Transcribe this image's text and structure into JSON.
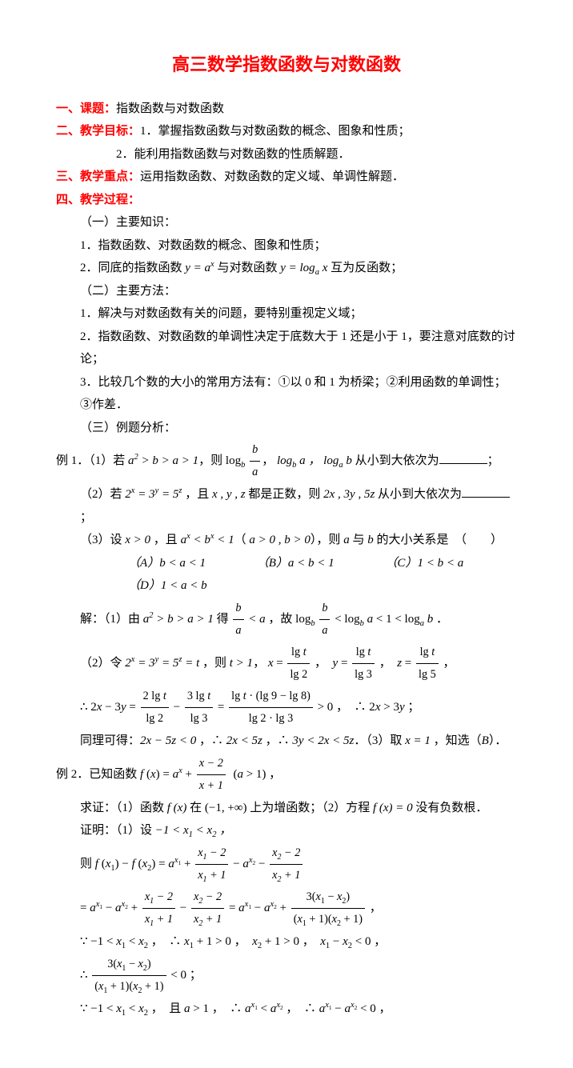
{
  "title": "高三数学指数函数与对数函数",
  "s1": {
    "label": "一、课题：",
    "text": "指数函数与对数函数"
  },
  "s2": {
    "label": "二、教学目标：",
    "item1": "1．掌握指数函数与对数函数的概念、图象和性质；",
    "item2": "2．能利用指数函数与对数函数的性质解题．"
  },
  "s3": {
    "label": "三、教学重点：",
    "text": "运用指数函数、对数函数的定义域、单调性解题．"
  },
  "s4": {
    "label": "四、教学过程：",
    "p1": {
      "h": "（一）主要知识：",
      "l1": "1．指数函数、对数函数的概念、图象和性质；",
      "l2a": "2．同底的指数函数 ",
      "l2b": " 与对数函数 ",
      "l2c": " 互为反函数；"
    },
    "p2": {
      "h": "（二）主要方法：",
      "l1": "1．解决与对数函数有关的问题，要特别重视定义域；",
      "l2": "2．指数函数、对数函数的单调性决定于底数大于 1 还是小于 1，要注意对底数的讨论；",
      "l3": "3．比较几个数的大小的常用方法有：①以 0 和 1 为桥梁；②利用函数的单调性；③作差．"
    },
    "p3h": "（三）例题分析："
  },
  "ex1": {
    "label": "例 1．",
    "q1a": "（1）若 ",
    "q1b": "，则 ",
    "q1c": "， ",
    "q1d": " 从小到大依次为",
    "q2a": "（2）若 ",
    "q2b": " ，且 ",
    "q2c": " 都是正数，则 ",
    "q2d": " 从小到大依次为",
    "q3a": "（3）设 ",
    "q3b": " ，且 ",
    "q3c": "（ ",
    "q3d": "），则 ",
    "q3e": " 与 ",
    "q3f": " 的大小关系是　（　　）",
    "choices": {
      "A": "b < a < 1",
      "B": "a < b < 1",
      "C": "1 < b < a",
      "D": "1 < a < b"
    },
    "sol1a": "解：（1）由 ",
    "sol1b": " 得 ",
    "sol1c": " ，故 ",
    "sol2a": "（2）令 ",
    "sol2b": " ，则 ",
    "sol2c": "， ",
    "sol2d": "∴ ",
    "sol2e": " ，∴ ",
    "sol2f": "同理可得：",
    "sol2g": " ，∴ ",
    "sol2h": " ，∴ ",
    "sol2i": "．（3）取 ",
    "sol2j": " ，知选（"
  },
  "ex2": {
    "label": "例 2．",
    "qa": "已知函数 ",
    "qb": " ，",
    "prove": "求证：（1）函数 ",
    "prove2": " 在 ",
    "prove3": " 上为增函数；（2）方程 ",
    "prove4": " 没有负数根．",
    "pf1": "证明：（1）设 ",
    "pf2a": "则 ",
    "pf3a": "",
    "pf4a": "∵ ",
    "pf4b": " ，∴ ",
    "pf4c": " ， ",
    "pf4d": " ， ",
    "pf5a": "∴ ",
    "pf6a": "∵ ",
    "pf6b": " ，且 ",
    "pf6c": " ，∴ ",
    "pf6d": " ，∴ "
  },
  "math": {
    "yax": "y = aˣ",
    "ylog": "y = logₐ x",
    "a2ba1": "a² > b > a > 1",
    "logb_ba": "log_b",
    "ba": "b",
    "a": "a",
    "logba": "log_b a",
    "logab": "log_a b",
    "e235": "2ˣ = 3ʸ = 5ᶻ",
    "xyz": "x , y , z",
    "2x3y5z": "2x , 3y , 5z",
    "x0": "x > 0",
    "axbx1": "aˣ < bˣ < 1",
    "a0": "a > 0 ,  b > 0",
    "ab": "a",
    "bb": "b",
    "ba_lt_a": "< a",
    "logchain": "< log_b a < 1 < log_a b",
    "e235t": "2ˣ = 3ʸ = 5ᶻ = t",
    "t1": "t > 1",
    "xlg": "x =",
    "lgt": "lg t",
    "lg2": "lg 2",
    "lg3": "lg 3",
    "lg5": "lg 5",
    "yeq": "y =",
    "zeq": "z =",
    "2x3yeq": "2x − 3y =",
    "2lgt": "2 lg t",
    "3lgt": "3 lg t",
    "top98": "lg t · (lg 9 − lg 8)",
    "bot23": "lg 2 · lg 3",
    "gt0": "> 0",
    "so2x3y": "2x > 3y",
    "2x5z0": "2x − 5z < 0",
    "2x5z": "2x < 5z",
    "chain": "3y < 2x < 5z",
    "x1": "x = 1",
    "ansB": "B",
    "fx": "f (x) = aˣ +",
    "x2": "x − 2",
    "x1d": "x + 1",
    "a1": "(a > 1)",
    "fxn": "f (x)",
    "int": "(−1, +∞)",
    "fx0": "f (x) = 0",
    "set": "−1 < x₁ < x₂",
    "fdiff": "f (x₁) − f (x₂) = aˣ¹ +",
    "x12": "x₁ − 2",
    "x11": "x₁ + 1",
    "minus": "− aˣ² −",
    "x22": "x₂ − 2",
    "x21": "x₂ + 1",
    "line2a": "= aˣ¹ − aˣ² +",
    "line2b": "−",
    "line2c": "= aˣ¹ − aˣ² +",
    "3x1x2": "3(x₁ − x₂)",
    "x11x21": "(x₁ + 1)(x₂ + 1)",
    "m1x1x2": "−1 < x₁ < x₂",
    "x11gt0": "x₁ + 1 > 0",
    "x21gt0": "x₂ + 1 > 0",
    "x1x20": "x₁ − x₂ < 0",
    "lt0": "< 0 ；",
    "agt1": "a > 1",
    "ax1ax2": "aˣ¹ < aˣ²",
    "axdiff": "aˣ¹ − aˣ² < 0"
  }
}
